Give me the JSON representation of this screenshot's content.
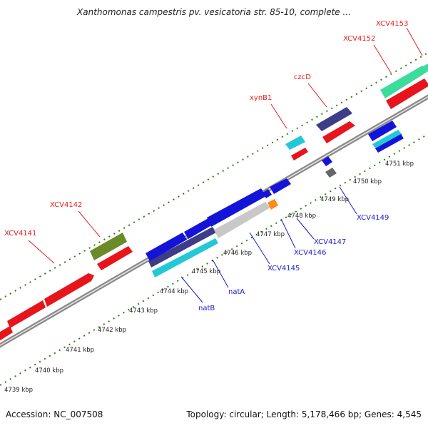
{
  "title": "Xanthomonas campestris pv. vesicatoria str. 85-10, complete ...",
  "accession": "Accession: NC_007508",
  "summary": "Topology: circular; Length: 5,178,466 bp; Genes: 4,545",
  "kbp_labels": [
    "4739 kbp",
    "4740 kbp",
    "4741 kbp",
    "4742 kbp",
    "4743 kbp",
    "4744 kbp",
    "4745 kbp",
    "4746 kbp",
    "4747 kbp",
    "4748 kbp",
    "4749 kbp",
    "4750 kbp",
    "4751 kbp"
  ],
  "gene_labels_forward": [
    "XCV4141",
    "XCV4142",
    "xynB1",
    "czcD",
    "XCV4152",
    "XCV4153"
  ],
  "gene_labels_reverse": [
    "natB",
    "natA",
    "XCV4145",
    "XCV4146",
    "XCV4147",
    "XCV4149"
  ],
  "colors": {
    "forward_label": "#e02020",
    "reverse_label": "#1a1acc",
    "red": "#e8141c",
    "blue": "#1414d8",
    "cyan": "#22c8d8",
    "navy": "#3c3c88",
    "olive": "#6b8a28",
    "mint": "#3cdc9c",
    "gray": "#c8c8c8",
    "orange": "#ff8c1a",
    "dot_green": "#2e7d1a",
    "backbone": "#888888"
  }
}
